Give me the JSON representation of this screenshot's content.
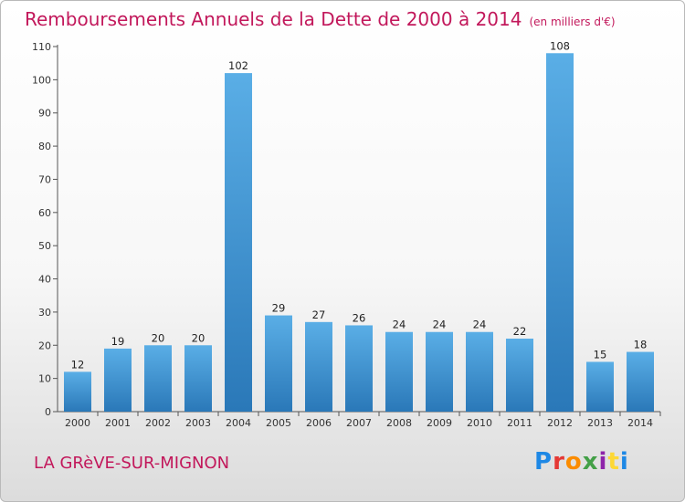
{
  "header": {
    "title": "Remboursements Annuels de la Dette de 2000 à 2014",
    "unit": "(en milliers d'€)"
  },
  "footer": {
    "commune": "LA GRèVE-SUR-MIGNON",
    "logo_text": "Proxiti"
  },
  "colors": {
    "title": "#c2185b",
    "bar_top": "#5aaee6",
    "bar_bottom": "#2a78b8",
    "logo": [
      "#1e88e5",
      "#e53935",
      "#fb8c00",
      "#43a047",
      "#8e24aa",
      "#fdd835",
      "#1e88e5"
    ]
  },
  "chart_data": {
    "type": "bar",
    "title": "Remboursements Annuels de la Dette de 2000 à 2014",
    "ylabel": "",
    "xlabel": "",
    "categories": [
      "2000",
      "2001",
      "2002",
      "2003",
      "2004",
      "2005",
      "2006",
      "2007",
      "2008",
      "2009",
      "2010",
      "2011",
      "2012",
      "2013",
      "2014"
    ],
    "values": [
      12,
      19,
      20,
      20,
      102,
      29,
      27,
      26,
      24,
      24,
      24,
      22,
      108,
      15,
      18
    ],
    "ylim": [
      0,
      110
    ],
    "yticks": [
      0,
      10,
      20,
      30,
      40,
      50,
      60,
      70,
      80,
      90,
      100,
      110
    ],
    "grid": false,
    "data_labels": true
  }
}
